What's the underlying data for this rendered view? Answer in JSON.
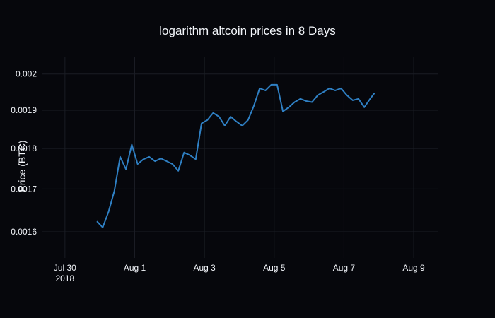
{
  "chart_data": {
    "type": "line",
    "title": "logarithm altcoin prices in 8 Days",
    "y_label": "Price (BTC)",
    "log_y": true,
    "grid": true,
    "xlim": [
      "2018-07-29 08:30",
      "2018-08-09 17:00"
    ],
    "xticks": [
      {
        "value": "2018-07-30",
        "label": "Jul 30\n2018"
      },
      {
        "value": "2018-08-01",
        "label": "Aug 1"
      },
      {
        "value": "2018-08-03",
        "label": "Aug 3"
      },
      {
        "value": "2018-08-05",
        "label": "Aug 5"
      },
      {
        "value": "2018-08-07",
        "label": "Aug 7"
      },
      {
        "value": "2018-08-09",
        "label": "Aug 9"
      }
    ],
    "ylim": [
      0.001542,
      0.00205
    ],
    "yticks": [
      0.0016,
      0.0017,
      0.0018,
      0.0019,
      0.002
    ],
    "x": [
      "2018-07-30 22:00",
      "2018-07-31 02:00",
      "2018-07-31 06:00",
      "2018-07-31 10:00",
      "2018-07-31 14:00",
      "2018-07-31 18:00",
      "2018-07-31 22:00",
      "2018-08-01 02:00",
      "2018-08-01 06:00",
      "2018-08-01 10:00",
      "2018-08-01 14:00",
      "2018-08-01 18:00",
      "2018-08-01 22:00",
      "2018-08-02 02:00",
      "2018-08-02 06:00",
      "2018-08-02 10:00",
      "2018-08-02 14:00",
      "2018-08-02 18:00",
      "2018-08-02 22:00",
      "2018-08-03 02:00",
      "2018-08-03 06:00",
      "2018-08-03 10:00",
      "2018-08-03 14:00",
      "2018-08-03 18:00",
      "2018-08-03 22:00",
      "2018-08-04 02:00",
      "2018-08-04 06:00",
      "2018-08-04 10:00",
      "2018-08-04 14:00",
      "2018-08-04 18:00",
      "2018-08-04 22:00",
      "2018-08-05 02:00",
      "2018-08-05 06:00",
      "2018-08-05 10:00",
      "2018-08-05 14:00",
      "2018-08-05 18:00",
      "2018-08-05 22:00",
      "2018-08-06 02:00",
      "2018-08-06 06:00",
      "2018-08-06 10:00",
      "2018-08-06 14:00",
      "2018-08-06 18:00",
      "2018-08-06 22:00",
      "2018-08-07 02:00",
      "2018-08-07 06:00",
      "2018-08-07 10:00",
      "2018-08-07 14:00",
      "2018-08-07 18:00",
      "2018-08-07 21:00"
    ],
    "series": [
      {
        "color": "#2f80c4",
        "values": [
          0.001624,
          0.00161,
          0.001646,
          0.001695,
          0.001779,
          0.001748,
          0.00181,
          0.001761,
          0.001773,
          0.001779,
          0.001768,
          0.001775,
          0.001768,
          0.001761,
          0.001744,
          0.00179,
          0.001783,
          0.001773,
          0.001865,
          0.001874,
          0.001893,
          0.001883,
          0.001859,
          0.001883,
          0.00187,
          0.001859,
          0.001874,
          0.001912,
          0.00196,
          0.001954,
          0.00197,
          0.00197,
          0.001897,
          0.001908,
          0.001922,
          0.001931,
          0.001925,
          0.001922,
          0.001941,
          0.00195,
          0.00196,
          0.001954,
          0.00196,
          0.001941,
          0.001927,
          0.001931,
          0.001908,
          0.001931,
          0.001947
        ]
      }
    ]
  }
}
